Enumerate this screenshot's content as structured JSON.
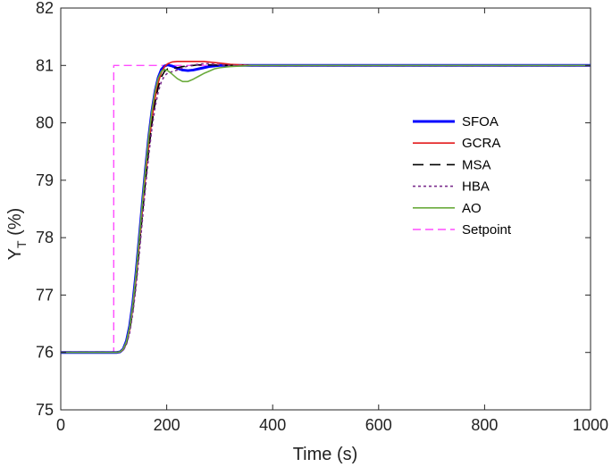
{
  "chart_data": {
    "type": "line",
    "xlabel": "Time (s)",
    "ylabel_main": "Y",
    "ylabel_sub": "T",
    "ylabel_rest": " (%)",
    "xlim": [
      0,
      1000
    ],
    "ylim": [
      75,
      82
    ],
    "xticks": [
      0,
      200,
      400,
      600,
      800,
      1000
    ],
    "yticks": [
      75,
      76,
      77,
      78,
      79,
      80,
      81,
      82
    ],
    "grid": false,
    "legend_position": "right",
    "series": [
      {
        "name": "SFOA",
        "color": "#0000ff",
        "dash": "solid",
        "width": 3,
        "x": [
          0,
          105,
          112,
          118,
          124,
          130,
          136,
          142,
          148,
          154,
          160,
          166,
          172,
          178,
          184,
          190,
          196,
          202,
          210,
          220,
          230,
          240,
          250,
          260,
          270,
          280,
          290,
          300,
          320,
          340,
          360,
          380,
          400,
          1000
        ],
        "y": [
          76.0,
          76.0,
          76.01,
          76.06,
          76.2,
          76.46,
          76.86,
          77.38,
          77.98,
          78.6,
          79.2,
          79.75,
          80.2,
          80.55,
          80.79,
          80.93,
          80.99,
          81.01,
          80.99,
          80.95,
          80.92,
          80.91,
          80.92,
          80.94,
          80.96,
          80.98,
          80.99,
          81.0,
          81.0,
          81.0,
          81.0,
          81.0,
          81.0,
          81.0
        ]
      },
      {
        "name": "GCRA",
        "color": "#e31a1c",
        "dash": "solid",
        "width": 1.6,
        "x": [
          0,
          105,
          112,
          118,
          124,
          130,
          136,
          142,
          148,
          154,
          160,
          166,
          172,
          178,
          184,
          190,
          196,
          202,
          210,
          220,
          230,
          240,
          250,
          260,
          270,
          280,
          290,
          300,
          320,
          340,
          360,
          380,
          400,
          1000
        ],
        "y": [
          76.0,
          76.0,
          76.01,
          76.05,
          76.17,
          76.4,
          76.78,
          77.28,
          77.86,
          78.47,
          79.06,
          79.6,
          80.06,
          80.43,
          80.7,
          80.88,
          80.98,
          81.03,
          81.06,
          81.07,
          81.07,
          81.07,
          81.07,
          81.07,
          81.07,
          81.06,
          81.05,
          81.04,
          81.02,
          81.01,
          81.0,
          81.0,
          81.0,
          81.0
        ]
      },
      {
        "name": "MSA",
        "color": "#000000",
        "dash": "12,7",
        "width": 1.6,
        "x": [
          0,
          105,
          112,
          118,
          124,
          130,
          136,
          142,
          148,
          154,
          160,
          166,
          172,
          178,
          184,
          190,
          196,
          202,
          210,
          220,
          230,
          240,
          250,
          260,
          270,
          280,
          290,
          300,
          320,
          340,
          360,
          380,
          400,
          1000
        ],
        "y": [
          76.0,
          76.0,
          76.01,
          76.05,
          76.16,
          76.38,
          76.74,
          77.22,
          77.79,
          78.39,
          78.98,
          79.52,
          79.98,
          80.35,
          80.62,
          80.8,
          80.9,
          80.94,
          80.95,
          80.96,
          80.98,
          80.99,
          81.0,
          81.01,
          81.01,
          81.01,
          81.01,
          81.0,
          81.0,
          81.0,
          81.0,
          81.0,
          81.0,
          81.0
        ]
      },
      {
        "name": "HBA",
        "color": "#7b2d8e",
        "dash": "3,3",
        "width": 1.6,
        "x": [
          0,
          105,
          112,
          118,
          124,
          130,
          136,
          142,
          148,
          154,
          160,
          166,
          172,
          178,
          184,
          190,
          196,
          202,
          210,
          220,
          230,
          240,
          250,
          260,
          270,
          280,
          290,
          300,
          320,
          340,
          360,
          380,
          400,
          1000
        ],
        "y": [
          76.0,
          76.0,
          76.01,
          76.04,
          76.14,
          76.34,
          76.68,
          77.14,
          77.7,
          78.3,
          78.89,
          79.43,
          79.9,
          80.27,
          80.54,
          80.72,
          80.82,
          80.87,
          80.89,
          80.92,
          80.96,
          80.99,
          81.01,
          81.02,
          81.03,
          81.03,
          81.02,
          81.01,
          81.0,
          81.0,
          81.0,
          81.0,
          81.0,
          81.0
        ]
      },
      {
        "name": "AO",
        "color": "#6aab3c",
        "dash": "solid",
        "width": 1.6,
        "x": [
          0,
          105,
          112,
          118,
          124,
          130,
          136,
          142,
          148,
          154,
          160,
          166,
          172,
          178,
          184,
          190,
          196,
          202,
          210,
          220,
          230,
          240,
          250,
          260,
          270,
          280,
          290,
          300,
          320,
          340,
          360,
          380,
          400,
          1000
        ],
        "y": [
          76.0,
          76.0,
          76.01,
          76.06,
          76.19,
          76.44,
          76.84,
          77.36,
          77.97,
          78.6,
          79.2,
          79.75,
          80.2,
          80.55,
          80.78,
          80.9,
          80.93,
          80.91,
          80.85,
          80.77,
          80.72,
          80.72,
          80.76,
          80.81,
          80.86,
          80.9,
          80.94,
          80.96,
          80.98,
          80.99,
          81.0,
          81.0,
          81.0,
          81.0
        ]
      },
      {
        "name": "Setpoint",
        "color": "#ff4dff",
        "dash": "9,5",
        "width": 1.4,
        "x": [
          0,
          100,
          100,
          1000
        ],
        "y": [
          76.0,
          76.0,
          81.0,
          81.0
        ]
      }
    ]
  }
}
